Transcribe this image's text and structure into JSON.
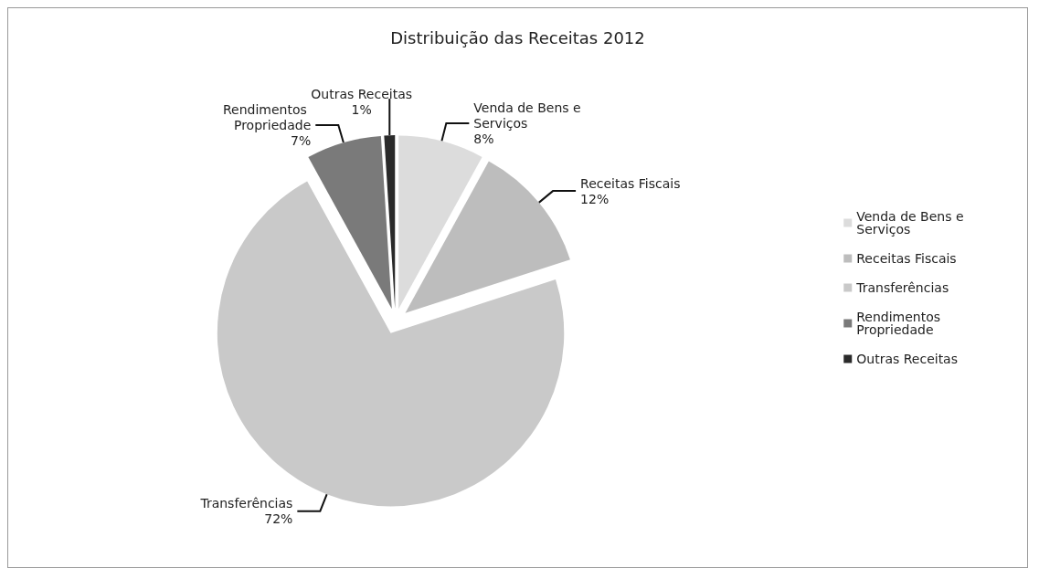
{
  "chart_data": {
    "type": "pie",
    "title": "Distribuição das Receitas 2012",
    "categories": [
      "Venda de Bens e Serviços",
      "Receitas Fiscais",
      "Transferências",
      "Rendimentos Propriedade",
      "Outras Receitas"
    ],
    "values": [
      8,
      12,
      72,
      7,
      1
    ],
    "value_labels": [
      "8%",
      "12%",
      "72%",
      "7%",
      "1%"
    ],
    "colors": [
      "#dcdcdc",
      "#bdbdbd",
      "#c9c9c9",
      "#7a7a7a",
      "#2a2a2a"
    ],
    "legend": "right"
  }
}
